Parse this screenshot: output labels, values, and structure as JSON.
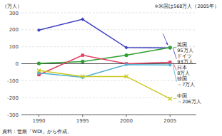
{
  "chart_data": {
    "type": "line",
    "x": [
      1990,
      1995,
      2000,
      2005
    ],
    "series": [
      {
        "name": "ドイツ\n93万人",
        "color": "#4040c0",
        "marker": "diamond",
        "values": [
          198,
          262,
          95,
          93
        ]
      },
      {
        "name": "英国\n95万人",
        "color": "#30a030",
        "marker": "circle",
        "values": [
          2,
          13,
          50,
          95
        ]
      },
      {
        "name": "日本\n8万人",
        "color": "#e04060",
        "marker": "square",
        "values": [
          -65,
          50,
          0,
          8
        ]
      },
      {
        "name": "韓国\n－7万人",
        "color": "#50b0d0",
        "marker": "diamond",
        "values": [
          -55,
          -80,
          -5,
          -7
        ]
      },
      {
        "name": "中国\n－206万人",
        "color": "#c8c820",
        "marker": "x",
        "values": [
          -40,
          -75,
          -75,
          -206
        ]
      }
    ],
    "xlim": [
      1988,
      2008
    ],
    "ylim": [
      -300,
      300
    ],
    "xticks": [
      1990,
      1995,
      2000,
      2005
    ],
    "yticks": [
      -300,
      -200,
      -100,
      0,
      100,
      200,
      300
    ],
    "ylabel": "（万人）",
    "annotation": "※米国は568万人（2005年）",
    "footnote": "資料：世銀「WDI」から作成。",
    "grid": true
  }
}
